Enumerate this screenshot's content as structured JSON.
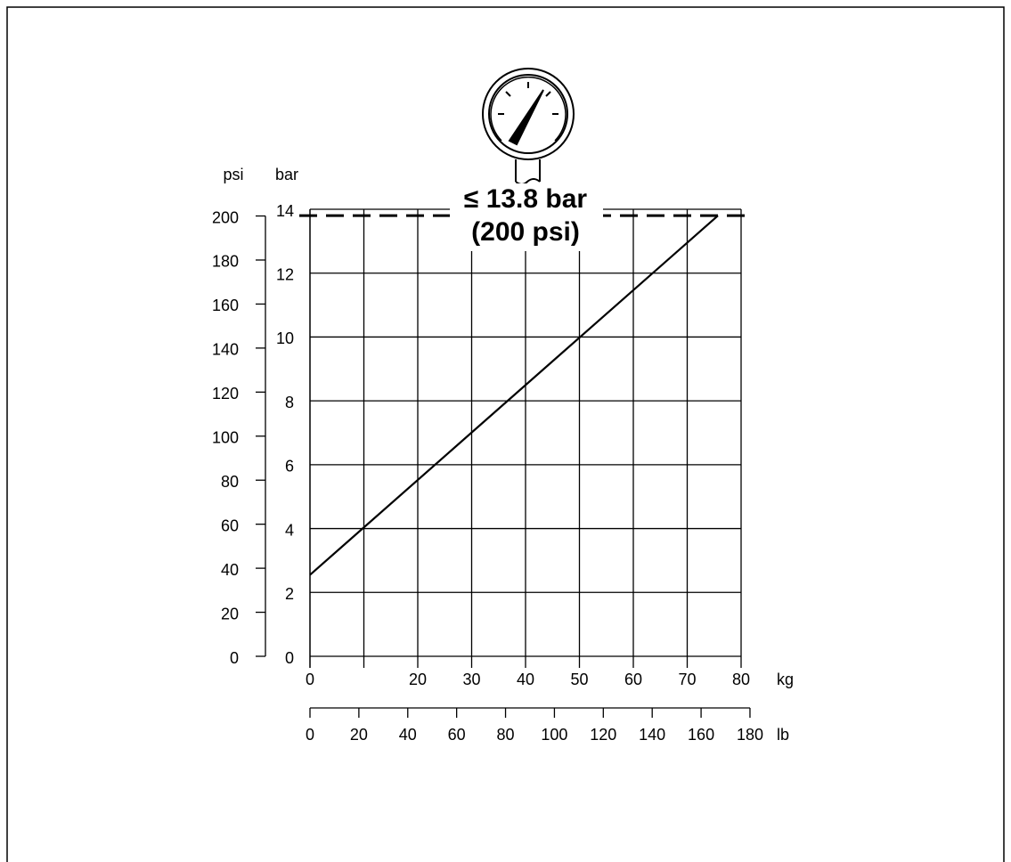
{
  "chart_data": {
    "type": "line",
    "x": [
      0,
      75.7
    ],
    "series": [
      {
        "color": "#000000",
        "values": [
          2.55,
          13.8
        ]
      }
    ],
    "xlim": [
      0,
      80
    ],
    "xticks": [
      0,
      {
        "value": 10,
        "label": null
      },
      20,
      30,
      40,
      50,
      60,
      70,
      80
    ],
    "xlabel": "kg",
    "ylim": [
      0,
      14
    ],
    "yticks": [
      0,
      2,
      4,
      6,
      8,
      10,
      12,
      14
    ],
    "ylabel": "bar",
    "y2lim": [
      0,
      203.05
    ],
    "y2ticks": [
      0,
      20,
      40,
      60,
      80,
      100,
      120,
      140,
      160,
      180,
      200
    ],
    "y2label": "psi",
    "x2lim": [
      0,
      176.37
    ],
    "x2ticks": [
      0,
      20,
      40,
      60,
      80,
      100,
      120,
      140,
      160,
      180
    ],
    "x2label": "lb",
    "grid": true,
    "reference_line": {
      "value": 13.8,
      "lines": [
        "≤ 13.8 bar",
        "(200 psi)"
      ]
    }
  }
}
